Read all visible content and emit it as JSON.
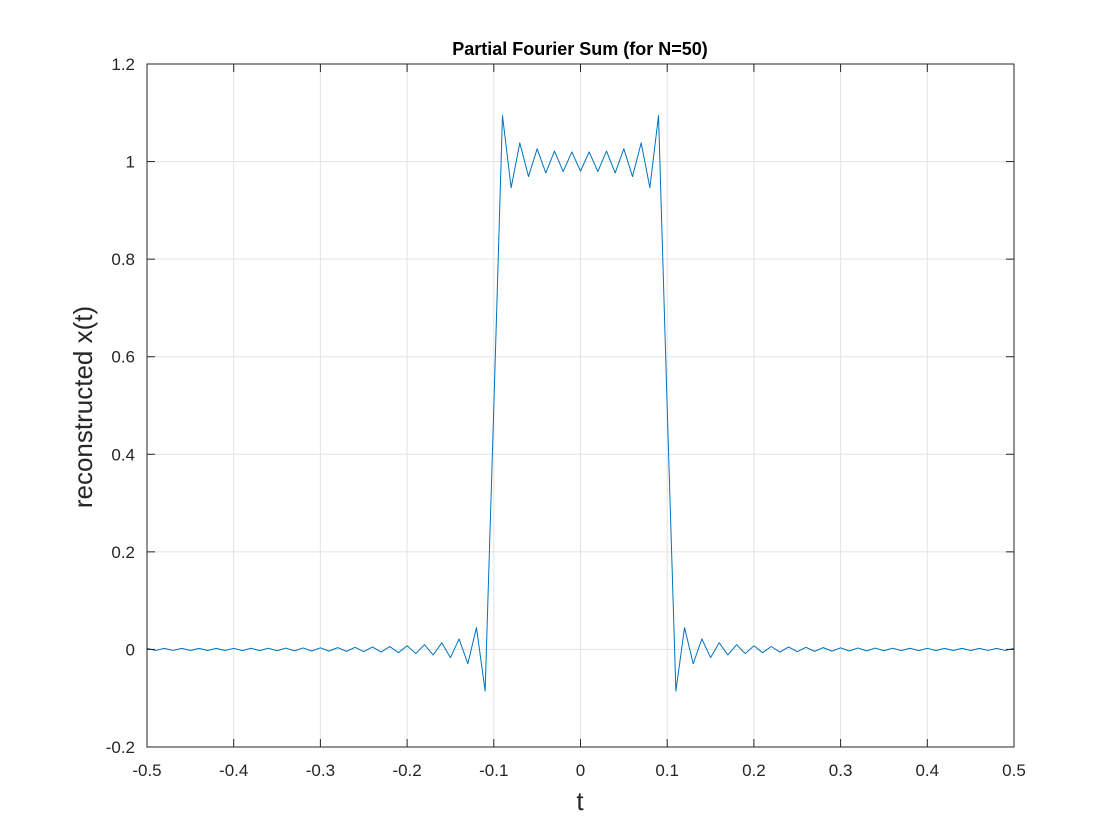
{
  "chart_data": {
    "type": "line",
    "title": "Partial Fourier Sum (for N=50)",
    "xlabel": "t",
    "ylabel": "reconstructed x(t)",
    "xlim": [
      -0.5,
      0.5
    ],
    "ylim": [
      -0.2,
      1.2
    ],
    "xticks": [
      -0.5,
      -0.4,
      -0.3,
      -0.2,
      -0.1,
      0,
      0.1,
      0.2,
      0.3,
      0.4,
      0.5
    ],
    "xtick_labels": [
      "-0.5",
      "-0.4",
      "-0.3",
      "-0.2",
      "-0.1",
      "0",
      "0.1",
      "0.2",
      "0.3",
      "0.4",
      "0.5"
    ],
    "yticks": [
      -0.2,
      0,
      0.2,
      0.4,
      0.6,
      0.8,
      1,
      1.2
    ],
    "ytick_labels": [
      "-0.2",
      "0",
      "0.2",
      "0.4",
      "0.6",
      "0.8",
      "1",
      "1.2"
    ],
    "grid": true,
    "legend": "none",
    "series": [
      {
        "color": "#0072BD",
        "N": 50,
        "pulse_halfwidth": 0.1,
        "period": 1,
        "t_start": -0.5,
        "t_end": 0.5,
        "sample_step": 0.01
      }
    ]
  }
}
